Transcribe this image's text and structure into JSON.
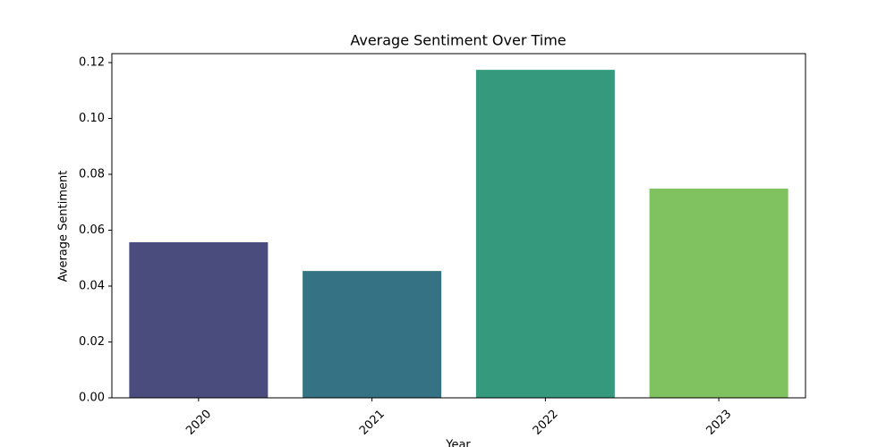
{
  "chart_data": {
    "type": "bar",
    "title": "Average Sentiment Over Time",
    "x_label": "Year",
    "y_label": "Average Sentiment",
    "categories": [
      "2020",
      "2021",
      "2022",
      "2023"
    ],
    "values": [
      0.0557,
      0.0454,
      0.1174,
      0.0749
    ],
    "colors": [
      "#4a4c7d",
      "#357283",
      "#35997d",
      "#80c160"
    ],
    "ylim": [
      0,
      0.1232
    ],
    "yticks": [
      {
        "value": 0,
        "label": "0.00"
      },
      {
        "value": 0.02,
        "label": "0.02"
      },
      {
        "value": 0.04,
        "label": "0.04"
      },
      {
        "value": 0.06,
        "label": "0.06"
      },
      {
        "value": 0.08,
        "label": "0.08"
      },
      {
        "value": 0.1,
        "label": "0.10"
      },
      {
        "value": 0.12,
        "label": "0.12"
      }
    ],
    "grid": false
  }
}
